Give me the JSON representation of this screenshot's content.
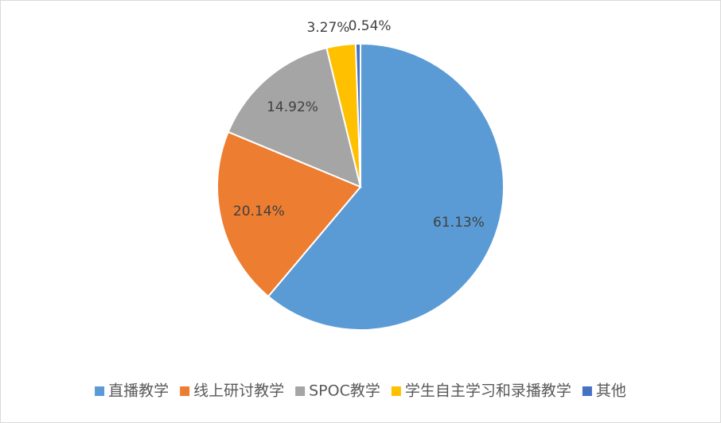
{
  "chart_data": {
    "type": "pie",
    "categories": [
      "直播教学",
      "线上研讨教学",
      "SPOC教学",
      "学生自主学习和录播教学",
      "其他"
    ],
    "values": [
      61.13,
      20.14,
      14.92,
      3.27,
      0.54
    ],
    "value_labels": [
      "61.13%",
      "20.14%",
      "14.92%",
      "3.27%",
      "0.54%"
    ],
    "colors": [
      "#5b9bd5",
      "#ed7d31",
      "#a5a5a5",
      "#ffc000",
      "#4472c4"
    ],
    "legend": "bottom"
  }
}
